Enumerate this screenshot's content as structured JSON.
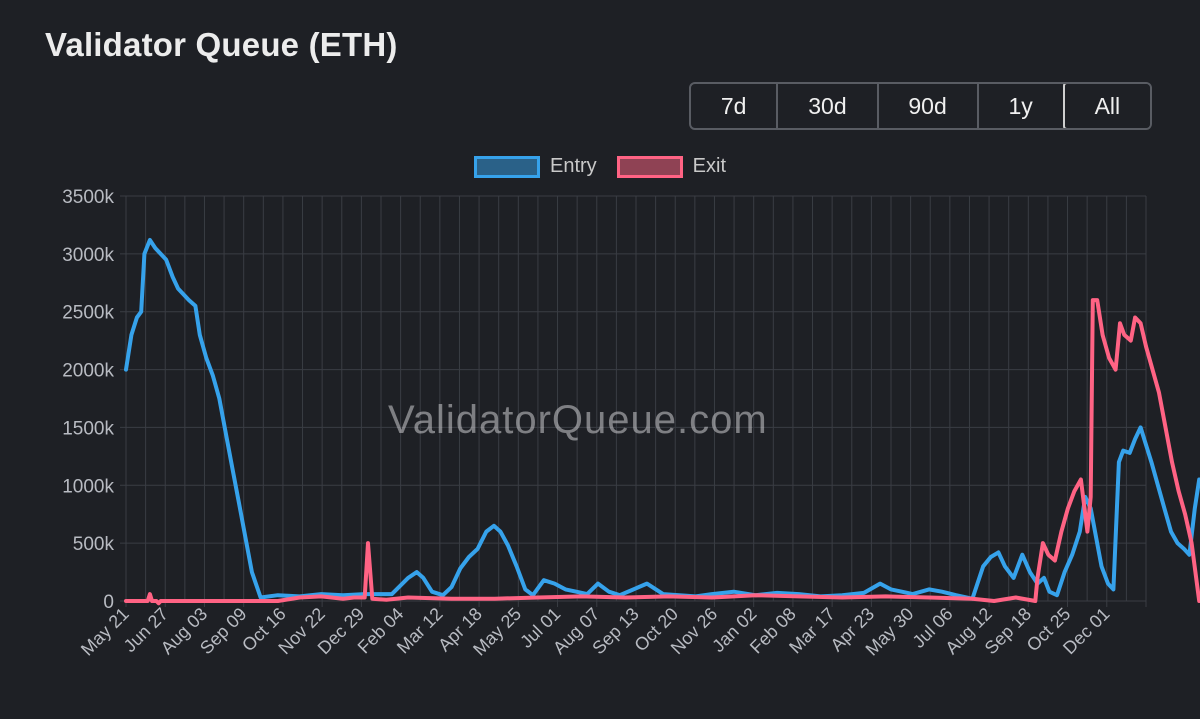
{
  "title": "Validator Queue (ETH)",
  "range_buttons": [
    "7d",
    "30d",
    "90d",
    "1y",
    "All"
  ],
  "active_range": "All",
  "watermark": "ValidatorQueue.com",
  "colors": {
    "entry": "#36a2eb",
    "exit": "#ff6384",
    "grid": "#3a3d44",
    "background": "#1e2025"
  },
  "chart_data": {
    "type": "line",
    "title": "Validator Queue (ETH)",
    "xlabel": "",
    "ylabel": "",
    "ylim": [
      0,
      3500000
    ],
    "y_ticks": [
      "0",
      "500k",
      "1000k",
      "1500k",
      "2000k",
      "2500k",
      "3000k",
      "3500k"
    ],
    "x_ticks": [
      "May 21",
      "Jun 27",
      "Aug 03",
      "Sep 09",
      "Oct 16",
      "Nov 22",
      "Dec 29",
      "Feb 04",
      "Mar 12",
      "Apr 18",
      "May 25",
      "Jul 01",
      "Aug 07",
      "Sep 13",
      "Oct 20",
      "Nov 26",
      "Jan 02",
      "Feb 08",
      "Mar 17",
      "Apr 23",
      "May 30",
      "Jul 06",
      "Aug 12",
      "Sep 18",
      "Oct 25",
      "Dec 01"
    ],
    "grid": true,
    "legend_position": "top-center",
    "x_index_max": 940,
    "series": [
      {
        "name": "Entry",
        "color": "#36a2eb",
        "points": [
          [
            0,
            2000000
          ],
          [
            5,
            2300000
          ],
          [
            10,
            2450000
          ],
          [
            14,
            2500000
          ],
          [
            17,
            3000000
          ],
          [
            22,
            3120000
          ],
          [
            27,
            3050000
          ],
          [
            32,
            3000000
          ],
          [
            37,
            2950000
          ],
          [
            43,
            2800000
          ],
          [
            48,
            2700000
          ],
          [
            53,
            2650000
          ],
          [
            58,
            2600000
          ],
          [
            64,
            2550000
          ],
          [
            68,
            2300000
          ],
          [
            74,
            2100000
          ],
          [
            80,
            1950000
          ],
          [
            86,
            1750000
          ],
          [
            92,
            1450000
          ],
          [
            98,
            1150000
          ],
          [
            104,
            850000
          ],
          [
            110,
            550000
          ],
          [
            116,
            250000
          ],
          [
            124,
            30000
          ],
          [
            140,
            50000
          ],
          [
            160,
            40000
          ],
          [
            180,
            60000
          ],
          [
            200,
            50000
          ],
          [
            220,
            60000
          ],
          [
            245,
            60000
          ],
          [
            260,
            200000
          ],
          [
            268,
            250000
          ],
          [
            274,
            200000
          ],
          [
            282,
            80000
          ],
          [
            292,
            50000
          ],
          [
            300,
            120000
          ],
          [
            308,
            280000
          ],
          [
            316,
            380000
          ],
          [
            324,
            450000
          ],
          [
            332,
            600000
          ],
          [
            339,
            650000
          ],
          [
            345,
            600000
          ],
          [
            352,
            480000
          ],
          [
            360,
            300000
          ],
          [
            368,
            100000
          ],
          [
            375,
            50000
          ],
          [
            385,
            180000
          ],
          [
            395,
            150000
          ],
          [
            405,
            100000
          ],
          [
            415,
            80000
          ],
          [
            425,
            60000
          ],
          [
            435,
            150000
          ],
          [
            445,
            80000
          ],
          [
            455,
            50000
          ],
          [
            465,
            90000
          ],
          [
            480,
            150000
          ],
          [
            495,
            60000
          ],
          [
            510,
            50000
          ],
          [
            525,
            40000
          ],
          [
            540,
            60000
          ],
          [
            560,
            80000
          ],
          [
            580,
            50000
          ],
          [
            600,
            70000
          ],
          [
            620,
            60000
          ],
          [
            640,
            40000
          ],
          [
            660,
            50000
          ],
          [
            680,
            70000
          ],
          [
            695,
            150000
          ],
          [
            705,
            100000
          ],
          [
            715,
            80000
          ],
          [
            725,
            60000
          ],
          [
            740,
            100000
          ],
          [
            752,
            80000
          ],
          [
            765,
            50000
          ],
          [
            780,
            20000
          ],
          [
            790,
            300000
          ],
          [
            797,
            380000
          ],
          [
            804,
            420000
          ],
          [
            810,
            300000
          ],
          [
            818,
            200000
          ],
          [
            826,
            400000
          ],
          [
            833,
            250000
          ],
          [
            840,
            150000
          ],
          [
            846,
            200000
          ],
          [
            851,
            80000
          ],
          [
            858,
            50000
          ],
          [
            865,
            250000
          ],
          [
            872,
            400000
          ],
          [
            879,
            600000
          ],
          [
            884,
            900000
          ],
          [
            889,
            800000
          ],
          [
            894,
            550000
          ],
          [
            899,
            300000
          ],
          [
            905,
            150000
          ],
          [
            910,
            100000
          ],
          [
            915,
            1200000
          ],
          [
            919,
            1300000
          ],
          [
            925,
            1280000
          ],
          [
            930,
            1400000
          ],
          [
            935,
            1500000
          ],
          [
            940,
            1350000
          ],
          [
            945,
            1200000
          ],
          [
            951,
            1000000
          ],
          [
            957,
            800000
          ],
          [
            963,
            600000
          ],
          [
            969,
            500000
          ],
          [
            975,
            450000
          ],
          [
            980,
            400000
          ],
          [
            985,
            800000
          ],
          [
            989,
            1050000
          ]
        ]
      },
      {
        "name": "Exit",
        "color": "#ff6384",
        "points": [
          [
            0,
            0
          ],
          [
            20,
            0
          ],
          [
            22,
            60000
          ],
          [
            24,
            0
          ],
          [
            28,
            0
          ],
          [
            30,
            -20000
          ],
          [
            32,
            0
          ],
          [
            60,
            0
          ],
          [
            100,
            0
          ],
          [
            140,
            0
          ],
          [
            160,
            30000
          ],
          [
            180,
            40000
          ],
          [
            200,
            20000
          ],
          [
            210,
            30000
          ],
          [
            220,
            30000
          ],
          [
            223,
            500000
          ],
          [
            227,
            20000
          ],
          [
            240,
            10000
          ],
          [
            260,
            30000
          ],
          [
            300,
            20000
          ],
          [
            340,
            20000
          ],
          [
            380,
            30000
          ],
          [
            420,
            40000
          ],
          [
            460,
            30000
          ],
          [
            500,
            40000
          ],
          [
            540,
            30000
          ],
          [
            580,
            50000
          ],
          [
            620,
            40000
          ],
          [
            660,
            30000
          ],
          [
            700,
            40000
          ],
          [
            740,
            30000
          ],
          [
            780,
            20000
          ],
          [
            800,
            0
          ],
          [
            820,
            30000
          ],
          [
            838,
            0
          ],
          [
            840,
            200000
          ],
          [
            845,
            500000
          ],
          [
            850,
            400000
          ],
          [
            856,
            350000
          ],
          [
            862,
            600000
          ],
          [
            868,
            800000
          ],
          [
            874,
            950000
          ],
          [
            880,
            1050000
          ],
          [
            886,
            600000
          ],
          [
            889,
            900000
          ],
          [
            891,
            2600000
          ],
          [
            895,
            2600000
          ],
          [
            900,
            2300000
          ],
          [
            906,
            2100000
          ],
          [
            912,
            2000000
          ],
          [
            916,
            2400000
          ],
          [
            920,
            2300000
          ],
          [
            926,
            2250000
          ],
          [
            930,
            2450000
          ],
          [
            935,
            2400000
          ],
          [
            940,
            2200000
          ],
          [
            946,
            2000000
          ],
          [
            952,
            1800000
          ],
          [
            958,
            1500000
          ],
          [
            964,
            1200000
          ],
          [
            970,
            950000
          ],
          [
            976,
            750000
          ],
          [
            982,
            500000
          ],
          [
            989,
            0
          ]
        ]
      }
    ]
  }
}
